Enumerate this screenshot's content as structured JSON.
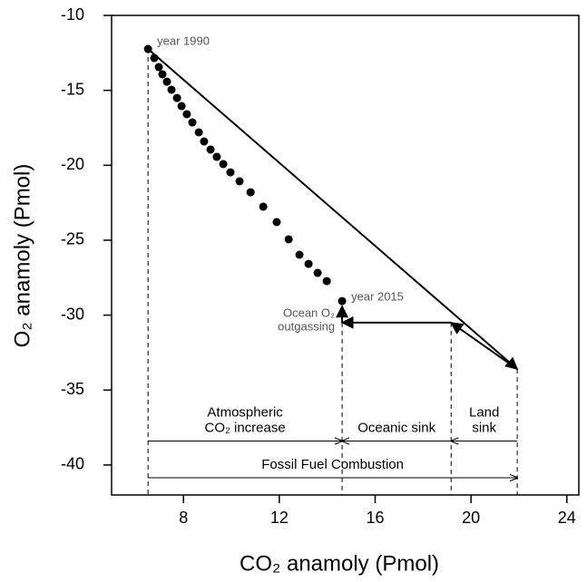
{
  "chart_data": {
    "type": "scatter",
    "x_label": "CO₂ anamoly (Pmol)",
    "y_label": "O₂ anamoly (Pmol)",
    "xlim": [
      5,
      24.5
    ],
    "ylim": [
      -42,
      -10
    ],
    "xticks": [
      8,
      12,
      16,
      20,
      24
    ],
    "yticks": [
      -10,
      -15,
      -20,
      -25,
      -30,
      -35,
      -40
    ],
    "color": "#000000",
    "x": [
      6.52,
      6.78,
      6.97,
      7.12,
      7.31,
      7.5,
      7.73,
      7.92,
      8.14,
      8.37,
      8.64,
      8.86,
      9.13,
      9.39,
      9.66,
      9.96,
      10.34,
      10.8,
      11.33,
      11.89,
      12.39,
      12.84,
      13.22,
      13.6,
      13.98,
      14.62
    ],
    "y": [
      -12.24,
      -12.84,
      -13.45,
      -13.93,
      -14.42,
      -14.96,
      -15.51,
      -16.05,
      -16.59,
      -17.14,
      -17.8,
      -18.41,
      -18.95,
      -19.44,
      -19.92,
      -20.47,
      -21.07,
      -21.8,
      -22.76,
      -23.79,
      -24.94,
      -25.97,
      -26.58,
      -27.18,
      -27.73,
      -29.06
    ],
    "first_label": "year 1990",
    "last_label": "year 2015",
    "vector_points": {
      "x": [
        6.52,
        21.93,
        19.17,
        14.62,
        14.62
      ],
      "y": [
        -12.24,
        -33.6,
        -30.5,
        -30.5,
        -29.4
      ]
    },
    "outgassing_label": [
      "Ocean O₂",
      "outgassing"
    ],
    "spans": [
      {
        "label": [
          "Atmospheric",
          "CO₂ increase"
        ],
        "x": [
          6.52,
          14.62
        ],
        "y": -38.4
      },
      {
        "label": [
          "Oceanic sink"
        ],
        "x": [
          19.17,
          14.62
        ],
        "y": -38.4
      },
      {
        "label": [
          "Land",
          "sink"
        ],
        "x": [
          21.93,
          19.17
        ],
        "y": -38.4
      },
      {
        "label": [
          "Fossil Fuel Combustion"
        ],
        "x": [
          6.52,
          21.93
        ],
        "y": -40.85
      }
    ]
  }
}
